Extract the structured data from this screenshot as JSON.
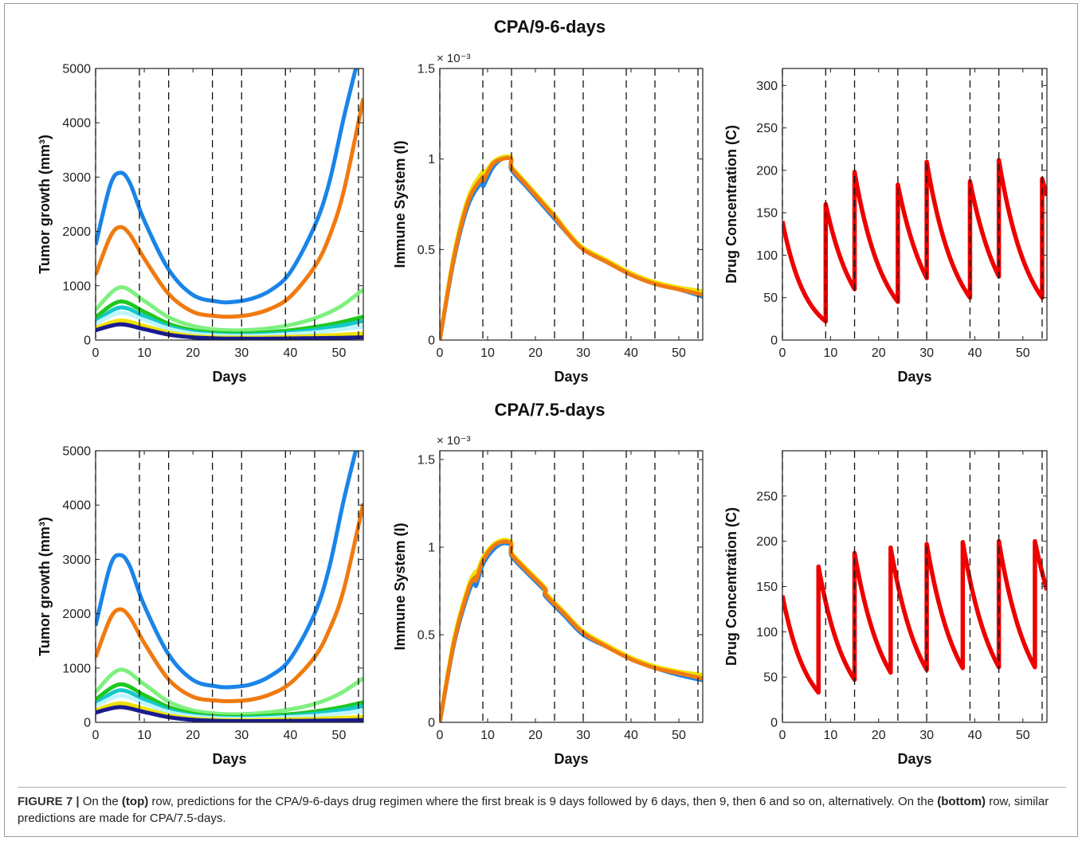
{
  "figure": {
    "row_titles": [
      "CPA/9-6-days",
      "CPA/7.5-days"
    ],
    "caption": {
      "label": "FIGURE 7 |",
      "part1": " On the ",
      "top": "(top)",
      "part2": " row, predictions for the CPA/9-6-days drug regimen where the first break is 9 days followed by 6 days, then 9, then 6 and so on, alternatively. On the ",
      "bottom": "(bottom)",
      "part3": " row, similar predictions are made for CPA/7.5-days."
    }
  },
  "chart_data": [
    {
      "panel": "top-left",
      "type": "line",
      "xlabel": "Days",
      "ylabel": "Tumor growth (mm³)",
      "xlim": [
        0,
        55
      ],
      "ylim": [
        0,
        5000
      ],
      "xticks": [
        0,
        10,
        20,
        30,
        40,
        50
      ],
      "yticks": [
        0,
        1000,
        2000,
        3000,
        4000,
        5000
      ],
      "dashed_vlines": [
        0,
        9,
        15,
        24,
        30,
        39,
        45,
        54
      ],
      "series": [
        {
          "color": "#1a84e8",
          "x": [
            0,
            3,
            5,
            7,
            10,
            15,
            20,
            25,
            28,
            32,
            36,
            40,
            45,
            48,
            51,
            54
          ],
          "y": [
            1750,
            2850,
            3080,
            2900,
            2200,
            1300,
            830,
            710,
            700,
            760,
            920,
            1250,
            2100,
            2900,
            4100,
            5200
          ]
        },
        {
          "color": "#f07a10",
          "x": [
            0,
            3,
            5,
            7,
            10,
            15,
            20,
            25,
            28,
            32,
            36,
            40,
            45,
            48,
            51,
            55
          ],
          "y": [
            1200,
            1900,
            2080,
            1950,
            1500,
            850,
            520,
            440,
            430,
            470,
            580,
            800,
            1350,
            1900,
            2750,
            4450
          ]
        },
        {
          "color": "#7ff07f",
          "x": [
            0,
            5,
            10,
            15,
            20,
            25,
            30,
            35,
            40,
            45,
            50,
            55
          ],
          "y": [
            560,
            970,
            720,
            420,
            260,
            190,
            180,
            210,
            280,
            400,
            600,
            930
          ]
        },
        {
          "color": "#1ec81e",
          "x": [
            0,
            5,
            10,
            15,
            20,
            25,
            30,
            35,
            40,
            45,
            50,
            55
          ],
          "y": [
            420,
            710,
            520,
            300,
            180,
            130,
            120,
            140,
            180,
            240,
            320,
            430
          ]
        },
        {
          "color": "#14c8c8",
          "x": [
            0,
            5,
            10,
            15,
            20,
            25,
            30,
            35,
            40,
            45,
            50,
            55
          ],
          "y": [
            340,
            600,
            440,
            250,
            150,
            105,
            95,
            110,
            140,
            190,
            260,
            350
          ]
        },
        {
          "color": "#bff5ff",
          "x": [
            0,
            5,
            10,
            15,
            20,
            25,
            30,
            35,
            40,
            45,
            50,
            55
          ],
          "y": [
            300,
            500,
            370,
            210,
            120,
            85,
            75,
            85,
            110,
            140,
            190,
            250
          ]
        },
        {
          "color": "#f0e000",
          "x": [
            0,
            5,
            10,
            15,
            20,
            25,
            30,
            35,
            40,
            45,
            50,
            55
          ],
          "y": [
            220,
            360,
            260,
            140,
            75,
            50,
            45,
            50,
            60,
            75,
            95,
            120
          ]
        },
        {
          "color": "#1a1a90",
          "x": [
            0,
            5,
            10,
            15,
            20,
            25,
            30,
            35,
            40,
            45,
            50,
            55
          ],
          "y": [
            180,
            290,
            200,
            100,
            50,
            30,
            25,
            25,
            30,
            35,
            40,
            50
          ]
        }
      ]
    },
    {
      "panel": "top-middle",
      "type": "line",
      "xlabel": "Days",
      "ylabel": "Immune System (I)",
      "xlim": [
        0,
        55
      ],
      "ylim": [
        0,
        0.0015
      ],
      "y_exponent": "× 10⁻³",
      "xticks": [
        0,
        10,
        20,
        30,
        40,
        50
      ],
      "yticks": [
        0,
        0.0005,
        0.001,
        0.0015
      ],
      "ytick_labels": [
        "0",
        "0.5",
        "1",
        "1.5"
      ],
      "dashed_vlines": [
        0,
        9,
        15,
        24,
        30,
        39,
        45,
        54
      ],
      "series": [
        {
          "color": "#1a84e8",
          "x": [
            0,
            3,
            6,
            9,
            9.1,
            11,
            13,
            14.9,
            15,
            18,
            21,
            24,
            27,
            30,
            35,
            40,
            45,
            50,
            55
          ],
          "y": [
            0,
            0.00045,
            0.00075,
            0.00088,
            0.00085,
            0.00095,
            0.001,
            0.001,
            0.00094,
            0.00085,
            0.00076,
            0.00067,
            0.00058,
            0.0005,
            0.00043,
            0.00036,
            0.00031,
            0.00028,
            0.00024
          ]
        },
        {
          "color": "#f0e000",
          "x": [
            0,
            3,
            6,
            9,
            9.1,
            11,
            13,
            14.9,
            15,
            18,
            21,
            24,
            27,
            30,
            35,
            40,
            45,
            50,
            55
          ],
          "y": [
            0,
            0.00048,
            0.00079,
            0.00093,
            0.00091,
            0.00098,
            0.00101,
            0.00101,
            0.00096,
            0.00087,
            0.00078,
            0.00069,
            0.00059,
            0.00051,
            0.00044,
            0.00037,
            0.00032,
            0.00029,
            0.00027
          ]
        },
        {
          "color": "#f07a10",
          "x": [
            0,
            3,
            6,
            9,
            9.1,
            11,
            13,
            14.9,
            15,
            18,
            21,
            24,
            27,
            30,
            35,
            40,
            45,
            50,
            55
          ],
          "y": [
            0,
            0.00046,
            0.00077,
            0.0009,
            0.00088,
            0.00097,
            0.001,
            0.001,
            0.00095,
            0.00086,
            0.00077,
            0.00068,
            0.00058,
            0.0005,
            0.00043,
            0.00036,
            0.00031,
            0.00028,
            0.00025
          ]
        }
      ]
    },
    {
      "panel": "top-right",
      "type": "line",
      "xlabel": "Days",
      "ylabel": "Drug Concentration (C)",
      "xlim": [
        0,
        55
      ],
      "ylim": [
        0,
        320
      ],
      "xticks": [
        0,
        10,
        20,
        30,
        40,
        50
      ],
      "yticks": [
        0,
        50,
        100,
        150,
        200,
        250,
        300
      ],
      "dashed_vlines": [
        0,
        9,
        15,
        24,
        30,
        39,
        45,
        54
      ],
      "series": [
        {
          "color": "#ee0000",
          "doses": [
            0,
            9,
            15,
            24,
            30,
            39,
            45,
            54
          ],
          "peaks": [
            140,
            160,
            198,
            183,
            210,
            187,
            212,
            190
          ],
          "troughs": [
            22,
            60,
            45,
            73,
            50,
            75,
            50
          ],
          "end": [
            55,
            170
          ]
        }
      ]
    },
    {
      "panel": "bottom-left",
      "type": "line",
      "xlabel": "Days",
      "ylabel": "Tumor growth (mm³)",
      "xlim": [
        0,
        55
      ],
      "ylim": [
        0,
        5000
      ],
      "xticks": [
        0,
        10,
        20,
        30,
        40,
        50
      ],
      "yticks": [
        0,
        1000,
        2000,
        3000,
        4000,
        5000
      ],
      "dashed_vlines": [
        0,
        9,
        15,
        24,
        30,
        39,
        45,
        54
      ],
      "series": [
        {
          "color": "#1a84e8",
          "x": [
            0,
            3,
            5,
            7,
            10,
            15,
            20,
            25,
            28,
            32,
            36,
            40,
            45,
            48,
            51,
            54
          ],
          "y": [
            1780,
            2880,
            3080,
            2880,
            2150,
            1250,
            780,
            660,
            650,
            700,
            860,
            1170,
            2000,
            2850,
            4100,
            5200
          ]
        },
        {
          "color": "#f07a10",
          "x": [
            0,
            3,
            5,
            7,
            10,
            15,
            20,
            25,
            28,
            32,
            36,
            40,
            45,
            48,
            51,
            55
          ],
          "y": [
            1200,
            1910,
            2080,
            1940,
            1460,
            790,
            470,
            400,
            390,
            420,
            520,
            720,
            1200,
            1700,
            2450,
            4030
          ]
        },
        {
          "color": "#7ff07f",
          "x": [
            0,
            5,
            10,
            15,
            20,
            25,
            30,
            35,
            40,
            45,
            50,
            55
          ],
          "y": [
            560,
            970,
            700,
            380,
            220,
            160,
            150,
            180,
            240,
            340,
            520,
            810
          ]
        },
        {
          "color": "#1ec81e",
          "x": [
            0,
            5,
            10,
            15,
            20,
            25,
            30,
            35,
            40,
            45,
            50,
            55
          ],
          "y": [
            420,
            700,
            500,
            280,
            160,
            110,
            100,
            120,
            150,
            200,
            270,
            370
          ]
        },
        {
          "color": "#14c8c8",
          "x": [
            0,
            5,
            10,
            15,
            20,
            25,
            30,
            35,
            40,
            45,
            50,
            55
          ],
          "y": [
            340,
            590,
            420,
            230,
            130,
            90,
            80,
            95,
            120,
            160,
            220,
            300
          ]
        },
        {
          "color": "#bff5ff",
          "x": [
            0,
            5,
            10,
            15,
            20,
            25,
            30,
            35,
            40,
            45,
            50,
            55
          ],
          "y": [
            300,
            490,
            350,
            190,
            110,
            75,
            65,
            75,
            95,
            120,
            160,
            210
          ]
        },
        {
          "color": "#f0e000",
          "x": [
            0,
            5,
            10,
            15,
            20,
            25,
            30,
            35,
            40,
            45,
            50,
            55
          ],
          "y": [
            220,
            350,
            250,
            130,
            70,
            45,
            40,
            45,
            55,
            65,
            80,
            100
          ]
        },
        {
          "color": "#1a1a90",
          "x": [
            0,
            5,
            10,
            15,
            20,
            25,
            30,
            35,
            40,
            45,
            50,
            55
          ],
          "y": [
            180,
            280,
            190,
            95,
            45,
            28,
            22,
            22,
            25,
            30,
            35,
            42
          ]
        }
      ]
    },
    {
      "panel": "bottom-middle",
      "type": "line",
      "xlabel": "Days",
      "ylabel": "Immune System (I)",
      "xlim": [
        0,
        55
      ],
      "ylim": [
        0,
        0.00155
      ],
      "y_exponent": "× 10⁻³",
      "xticks": [
        0,
        10,
        20,
        30,
        40,
        50
      ],
      "yticks": [
        0,
        0.0005,
        0.001,
        0.0015
      ],
      "ytick_labels": [
        "0",
        "0.5",
        "1",
        "1.5"
      ],
      "dashed_vlines": [
        0,
        9,
        15,
        24,
        30,
        39,
        45,
        54
      ],
      "series": [
        {
          "color": "#1a84e8",
          "x": [
            0,
            3,
            6,
            7.5,
            7.6,
            9,
            11,
            13,
            14.9,
            15,
            18,
            22,
            22.1,
            26,
            30,
            35,
            40,
            45,
            50,
            55
          ],
          "y": [
            0,
            0.00045,
            0.00074,
            0.00081,
            0.00078,
            0.0009,
            0.00098,
            0.00102,
            0.00101,
            0.00095,
            0.00086,
            0.00075,
            0.00072,
            0.00061,
            0.0005,
            0.00043,
            0.00036,
            0.00031,
            0.00027,
            0.00024
          ]
        },
        {
          "color": "#f0e000",
          "x": [
            0,
            3,
            6,
            7.5,
            7.6,
            9,
            11,
            13,
            14.9,
            15,
            18,
            22,
            22.1,
            26,
            30,
            35,
            40,
            45,
            50,
            55
          ],
          "y": [
            0,
            0.00048,
            0.00078,
            0.00086,
            0.00084,
            0.00094,
            0.00101,
            0.00104,
            0.00103,
            0.00097,
            0.00088,
            0.00077,
            0.00074,
            0.00063,
            0.00052,
            0.00044,
            0.00037,
            0.00032,
            0.00029,
            0.00027
          ]
        },
        {
          "color": "#f07a10",
          "x": [
            0,
            3,
            6,
            7.5,
            7.6,
            9,
            11,
            13,
            14.9,
            15,
            18,
            22,
            22.1,
            26,
            30,
            35,
            40,
            45,
            50,
            55
          ],
          "y": [
            0,
            0.00046,
            0.00076,
            0.00083,
            0.00081,
            0.00092,
            0.001,
            0.00103,
            0.00102,
            0.00096,
            0.00087,
            0.00076,
            0.00073,
            0.00062,
            0.00051,
            0.00043,
            0.00036,
            0.00031,
            0.00028,
            0.00025
          ]
        }
      ]
    },
    {
      "panel": "bottom-right",
      "type": "line",
      "xlabel": "Days",
      "ylabel": "Drug Concentration (C)",
      "xlim": [
        0,
        55
      ],
      "ylim": [
        0,
        300
      ],
      "xticks": [
        0,
        10,
        20,
        30,
        40,
        50
      ],
      "yticks": [
        0,
        50,
        100,
        150,
        200,
        250
      ],
      "dashed_vlines": [
        0,
        9,
        15,
        24,
        30,
        39,
        45,
        54
      ],
      "series": [
        {
          "color": "#ee0000",
          "doses": [
            0,
            7.5,
            15,
            22.5,
            30,
            37.5,
            45,
            52.5
          ],
          "peaks": [
            140,
            172,
            187,
            193,
            197,
            199,
            200,
            200
          ],
          "troughs": [
            33,
            47,
            55,
            58,
            60,
            61,
            61
          ],
          "end": [
            55,
            146
          ]
        }
      ]
    }
  ]
}
